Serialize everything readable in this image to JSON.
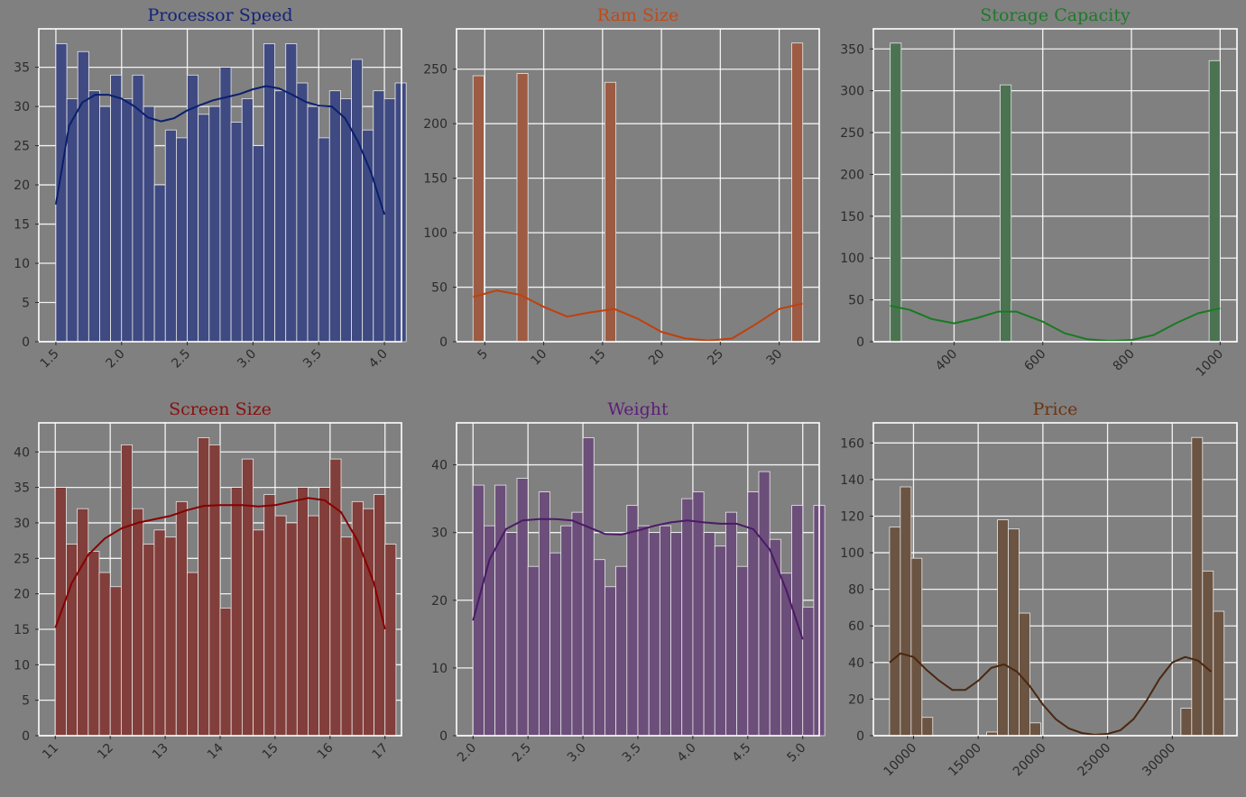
{
  "chart_data": [
    {
      "type": "bar",
      "title": "Processor Speed",
      "title_color": "#13237a",
      "bar_color": "#3f4a82",
      "kde_color": "#0a1f6e",
      "xlim": [
        1.37,
        4.13
      ],
      "ylim": [
        0,
        39.9
      ],
      "x_ticks": [
        1.5,
        2.0,
        2.5,
        3.0,
        3.5,
        4.0
      ],
      "x_tick_labels": [
        "1.5",
        "2.0",
        "2.5",
        "3.0",
        "3.5",
        "4.0"
      ],
      "y_ticks": [
        0,
        5,
        10,
        15,
        20,
        25,
        30,
        35
      ],
      "y_tick_labels": [
        "0",
        "5",
        "10",
        "15",
        "20",
        "25",
        "30",
        "35"
      ],
      "bin_start": 1.5,
      "bin_width": 0.0833,
      "values": [
        38,
        31,
        37,
        32,
        30,
        34,
        31,
        34,
        30,
        20,
        27,
        26,
        34,
        29,
        30,
        35,
        28,
        31,
        25,
        38,
        32,
        38,
        33,
        30,
        26,
        32,
        31,
        36,
        27,
        32,
        31,
        33
      ],
      "kde": [
        [
          1.5,
          17.5
        ],
        [
          1.6,
          27.5
        ],
        [
          1.7,
          30.5
        ],
        [
          1.8,
          31.5
        ],
        [
          1.9,
          31.5
        ],
        [
          2.0,
          31.0
        ],
        [
          2.1,
          30.0
        ],
        [
          2.2,
          28.6
        ],
        [
          2.3,
          28.1
        ],
        [
          2.4,
          28.5
        ],
        [
          2.5,
          29.5
        ],
        [
          2.6,
          30.2
        ],
        [
          2.7,
          30.8
        ],
        [
          2.8,
          31.2
        ],
        [
          2.9,
          31.6
        ],
        [
          3.0,
          32.2
        ],
        [
          3.1,
          32.6
        ],
        [
          3.2,
          32.3
        ],
        [
          3.3,
          31.5
        ],
        [
          3.4,
          30.6
        ],
        [
          3.5,
          30.1
        ],
        [
          3.6,
          30.0
        ],
        [
          3.7,
          28.5
        ],
        [
          3.8,
          25.5
        ],
        [
          3.9,
          21.5
        ],
        [
          4.0,
          16.2
        ]
      ]
    },
    {
      "type": "bar",
      "title": "Ram Size",
      "title_color": "#c04a18",
      "bar_color": "#9c5b42",
      "kde_color": "#c0400c",
      "xlim": [
        2.6,
        33.4
      ],
      "ylim": [
        0,
        287
      ],
      "x_ticks": [
        5,
        10,
        15,
        20,
        25,
        30
      ],
      "x_tick_labels": [
        "5",
        "10",
        "15",
        "20",
        "25",
        "30"
      ],
      "y_ticks": [
        0,
        50,
        100,
        150,
        200,
        250
      ],
      "y_tick_labels": [
        "0",
        "50",
        "100",
        "150",
        "200",
        "250"
      ],
      "bin_start": 4,
      "bin_width": 0.9333,
      "values": [
        244,
        0,
        0,
        0,
        246,
        0,
        0,
        0,
        0,
        0,
        0,
        0,
        238,
        0,
        0,
        0,
        0,
        0,
        0,
        0,
        0,
        0,
        0,
        0,
        0,
        0,
        0,
        0,
        0,
        274
      ],
      "kde": [
        [
          4,
          41
        ],
        [
          6,
          47
        ],
        [
          8,
          43
        ],
        [
          10,
          32
        ],
        [
          12,
          23
        ],
        [
          14,
          27
        ],
        [
          16,
          30
        ],
        [
          18,
          21
        ],
        [
          20,
          9
        ],
        [
          22,
          3
        ],
        [
          24,
          1
        ],
        [
          26,
          3
        ],
        [
          28,
          16
        ],
        [
          30,
          30
        ],
        [
          32,
          35
        ]
      ]
    },
    {
      "type": "bar",
      "title": "Storage Capacity",
      "title_color": "#1d7a2a",
      "bar_color": "#4b7352",
      "kde_color": "#187a22",
      "xlim": [
        218,
        1038
      ],
      "ylim": [
        0,
        374
      ],
      "x_ticks": [
        400,
        600,
        800,
        1000
      ],
      "x_tick_labels": [
        "400",
        "600",
        "800",
        "1000"
      ],
      "y_ticks": [
        0,
        50,
        100,
        150,
        200,
        250,
        300,
        350
      ],
      "y_tick_labels": [
        "0",
        "50",
        "100",
        "150",
        "200",
        "250",
        "300",
        "350"
      ],
      "bin_start": 256,
      "bin_width": 24.8,
      "values": [
        357,
        0,
        0,
        0,
        0,
        0,
        0,
        0,
        0,
        0,
        307,
        0,
        0,
        0,
        0,
        0,
        0,
        0,
        0,
        0,
        0,
        0,
        0,
        0,
        0,
        0,
        0,
        0,
        0,
        336
      ],
      "kde": [
        [
          256,
          43
        ],
        [
          300,
          38
        ],
        [
          350,
          27
        ],
        [
          400,
          22
        ],
        [
          450,
          28
        ],
        [
          500,
          36
        ],
        [
          540,
          36
        ],
        [
          600,
          24
        ],
        [
          650,
          10
        ],
        [
          700,
          3
        ],
        [
          750,
          1
        ],
        [
          800,
          2
        ],
        [
          850,
          8
        ],
        [
          900,
          22
        ],
        [
          950,
          34
        ],
        [
          1000,
          40
        ]
      ]
    },
    {
      "type": "bar",
      "title": "Screen Size",
      "title_color": "#8a0f0f",
      "bar_color": "#813e3a",
      "kde_color": "#880000",
      "xlim": [
        10.7,
        17.3
      ],
      "ylim": [
        0,
        44.1
      ],
      "x_ticks": [
        11,
        12,
        13,
        14,
        15,
        16,
        17
      ],
      "x_tick_labels": [
        "11",
        "12",
        "13",
        "14",
        "15",
        "16",
        "17"
      ],
      "y_ticks": [
        0,
        5,
        10,
        15,
        20,
        25,
        30,
        35,
        40
      ],
      "y_tick_labels": [
        "0",
        "5",
        "10",
        "15",
        "20",
        "25",
        "30",
        "35",
        "40"
      ],
      "bin_start": 11,
      "bin_width": 0.2,
      "values": [
        35,
        27,
        32,
        26,
        23,
        21,
        41,
        32,
        27,
        29,
        28,
        33,
        23,
        42,
        41,
        18,
        35,
        39,
        29,
        34,
        31,
        30,
        35,
        31,
        35,
        39,
        28,
        33,
        32,
        34,
        27
      ],
      "kde": [
        [
          11,
          15.2
        ],
        [
          11.3,
          21.5
        ],
        [
          11.6,
          25.5
        ],
        [
          11.9,
          27.8
        ],
        [
          12.2,
          29.2
        ],
        [
          12.5,
          30.0
        ],
        [
          12.8,
          30.5
        ],
        [
          13.1,
          31.0
        ],
        [
          13.4,
          31.8
        ],
        [
          13.7,
          32.4
        ],
        [
          14.0,
          32.5
        ],
        [
          14.4,
          32.5
        ],
        [
          14.7,
          32.3
        ],
        [
          15.0,
          32.5
        ],
        [
          15.3,
          33.0
        ],
        [
          15.6,
          33.5
        ],
        [
          15.9,
          33.2
        ],
        [
          16.2,
          31.5
        ],
        [
          16.5,
          27.5
        ],
        [
          16.8,
          21.5
        ],
        [
          17.0,
          15.0
        ]
      ]
    },
    {
      "type": "bar",
      "title": "Weight",
      "title_color": "#5c1d7a",
      "bar_color": "#6c4e7a",
      "kde_color": "#4b1a66",
      "xlim": [
        1.85,
        5.15
      ],
      "ylim": [
        0,
        46.2
      ],
      "x_ticks": [
        2.0,
        2.5,
        3.0,
        3.5,
        4.0,
        4.5,
        5.0
      ],
      "x_tick_labels": [
        "2.0",
        "2.5",
        "3.0",
        "3.5",
        "4.0",
        "4.5",
        "5.0"
      ],
      "y_ticks": [
        0,
        10,
        20,
        30,
        40
      ],
      "y_tick_labels": [
        "0",
        "10",
        "20",
        "30",
        "40"
      ],
      "bin_start": 2,
      "bin_width": 0.1,
      "values": [
        37,
        31,
        37,
        30,
        38,
        25,
        36,
        27,
        31,
        33,
        44,
        26,
        22,
        25,
        34,
        31,
        30,
        31,
        30,
        35,
        36,
        30,
        28,
        33,
        25,
        36,
        39,
        29,
        24,
        34,
        19,
        34
      ],
      "kde": [
        [
          2.0,
          17
        ],
        [
          2.15,
          26
        ],
        [
          2.3,
          30.5
        ],
        [
          2.45,
          31.8
        ],
        [
          2.6,
          32.0
        ],
        [
          2.75,
          32.0
        ],
        [
          2.9,
          31.8
        ],
        [
          3.05,
          30.8
        ],
        [
          3.2,
          29.8
        ],
        [
          3.35,
          29.7
        ],
        [
          3.5,
          30.3
        ],
        [
          3.65,
          31.0
        ],
        [
          3.8,
          31.5
        ],
        [
          3.95,
          31.8
        ],
        [
          4.1,
          31.5
        ],
        [
          4.25,
          31.3
        ],
        [
          4.4,
          31.3
        ],
        [
          4.55,
          30.5
        ],
        [
          4.7,
          27.5
        ],
        [
          4.85,
          21.5
        ],
        [
          5.0,
          14.2
        ]
      ]
    },
    {
      "type": "bar",
      "title": "Price",
      "title_color": "#6b3510",
      "bar_color": "#6b5442",
      "kde_color": "#4a2710",
      "xlim": [
        6900,
        35000
      ],
      "ylim": [
        0,
        171
      ],
      "x_ticks": [
        10000,
        15000,
        20000,
        25000,
        30000
      ],
      "x_tick_labels": [
        "10000",
        "15000",
        "20000",
        "25000",
        "30000"
      ],
      "y_ticks": [
        0,
        20,
        40,
        60,
        80,
        100,
        120,
        140,
        160
      ],
      "y_tick_labels": [
        "0",
        "20",
        "40",
        "60",
        "80",
        "100",
        "120",
        "140",
        "160"
      ],
      "bin_start": 8150,
      "bin_width": 834,
      "values": [
        114,
        136,
        97,
        10,
        0,
        0,
        0,
        0,
        0,
        2,
        118,
        113,
        67,
        7,
        0,
        0,
        0,
        0,
        0,
        0,
        0,
        0,
        0,
        0,
        0,
        0,
        0,
        15,
        163,
        90,
        68
      ],
      "kde": [
        [
          8150,
          40
        ],
        [
          9000,
          45
        ],
        [
          10000,
          43
        ],
        [
          11000,
          36
        ],
        [
          12000,
          30
        ],
        [
          13000,
          25
        ],
        [
          14000,
          25
        ],
        [
          15000,
          30
        ],
        [
          16000,
          37
        ],
        [
          17000,
          39
        ],
        [
          18000,
          35
        ],
        [
          19000,
          27
        ],
        [
          20000,
          17
        ],
        [
          21000,
          9
        ],
        [
          22000,
          4
        ],
        [
          23000,
          1.5
        ],
        [
          24000,
          0.5
        ],
        [
          25000,
          1
        ],
        [
          26000,
          3
        ],
        [
          27000,
          9
        ],
        [
          28000,
          19
        ],
        [
          29000,
          31
        ],
        [
          30000,
          40
        ],
        [
          31000,
          43
        ],
        [
          32000,
          41
        ],
        [
          33000,
          35
        ]
      ]
    }
  ]
}
